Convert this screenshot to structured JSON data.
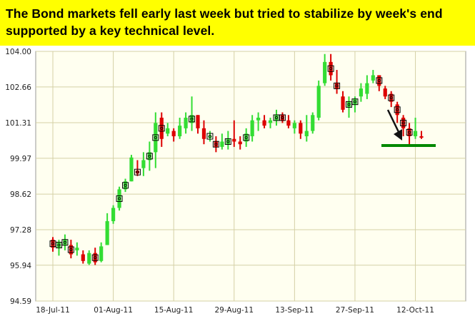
{
  "headline": "The Bond markets fell early last week but tried to stabilize by week's end supported by a key technical level.",
  "colors": {
    "headline_bg": "#ffff00",
    "plot_bg": "#fffff0",
    "grid": "#d4d0a6",
    "frame": "#999999",
    "up": "#33dd33",
    "down": "#dd0000",
    "support_line": "#008800",
    "arrow": "#111111"
  },
  "chart_data": {
    "type": "candlestick",
    "title": "",
    "xlabel": "",
    "ylabel": "",
    "ylim": [
      94.59,
      104.0
    ],
    "y_ticks": [
      "104.00",
      "102.66",
      "101.31",
      "99.97",
      "98.62",
      "97.28",
      "95.94",
      "94.59"
    ],
    "x_ticks": [
      "18-Jul-11",
      "01-Aug-11",
      "15-Aug-11",
      "29-Aug-11",
      "13-Sep-11",
      "27-Sep-11",
      "12-Oct-11"
    ],
    "grid": true,
    "support_level": 100.45,
    "annotation": "arrow pointing down to support line",
    "candles": [
      {
        "date": "18-Jul",
        "open": 96.9,
        "high": 97.0,
        "low": 96.45,
        "close": 96.6,
        "marker": true
      },
      {
        "date": "19-Jul",
        "open": 96.6,
        "high": 96.9,
        "low": 96.3,
        "close": 96.8,
        "marker": true
      },
      {
        "date": "20-Jul",
        "open": 96.7,
        "high": 97.1,
        "low": 96.5,
        "close": 96.9,
        "marker": true
      },
      {
        "date": "21-Jul",
        "open": 96.7,
        "high": 96.9,
        "low": 96.2,
        "close": 96.35,
        "marker": true
      },
      {
        "date": "22-Jul",
        "open": 96.5,
        "high": 96.8,
        "low": 96.3,
        "close": 96.6,
        "marker": false
      },
      {
        "date": "25-Jul",
        "open": 96.35,
        "high": 96.5,
        "low": 96.0,
        "close": 96.1,
        "marker": false
      },
      {
        "date": "26-Jul",
        "open": 96.0,
        "high": 96.5,
        "low": 95.95,
        "close": 96.4,
        "marker": false
      },
      {
        "date": "27-Jul",
        "open": 96.4,
        "high": 96.6,
        "low": 95.95,
        "close": 96.05,
        "marker": true
      },
      {
        "date": "28-Jul",
        "open": 96.1,
        "high": 96.8,
        "low": 96.05,
        "close": 96.65,
        "marker": false
      },
      {
        "date": "29-Jul",
        "open": 96.7,
        "high": 97.9,
        "low": 96.7,
        "close": 97.6,
        "marker": false
      },
      {
        "date": "01-Aug",
        "open": 97.6,
        "high": 98.2,
        "low": 97.5,
        "close": 98.1,
        "marker": false
      },
      {
        "date": "02-Aug",
        "open": 98.1,
        "high": 98.9,
        "low": 98.0,
        "close": 98.8,
        "marker": true
      },
      {
        "date": "03-Aug",
        "open": 98.8,
        "high": 99.2,
        "low": 98.7,
        "close": 99.1,
        "marker": true
      },
      {
        "date": "04-Aug",
        "open": 99.1,
        "high": 100.1,
        "low": 99.1,
        "close": 100.0,
        "marker": false
      },
      {
        "date": "05-Aug",
        "open": 99.5,
        "high": 99.9,
        "low": 99.3,
        "close": 99.4,
        "marker": true
      },
      {
        "date": "08-Aug",
        "open": 99.6,
        "high": 100.2,
        "low": 99.3,
        "close": 99.9,
        "marker": false
      },
      {
        "date": "09-Aug",
        "open": 99.9,
        "high": 100.6,
        "low": 99.5,
        "close": 100.2,
        "marker": true
      },
      {
        "date": "10-Aug",
        "open": 100.2,
        "high": 101.7,
        "low": 99.6,
        "close": 101.3,
        "marker": true
      },
      {
        "date": "11-Aug",
        "open": 101.5,
        "high": 101.7,
        "low": 100.4,
        "close": 100.7,
        "marker": true
      },
      {
        "date": "12-Aug",
        "open": 100.9,
        "high": 101.3,
        "low": 100.8,
        "close": 101.1,
        "marker": false
      },
      {
        "date": "15-Aug",
        "open": 101.0,
        "high": 101.1,
        "low": 100.6,
        "close": 100.8,
        "marker": false
      },
      {
        "date": "16-Aug",
        "open": 100.8,
        "high": 101.5,
        "low": 100.7,
        "close": 101.2,
        "marker": false
      },
      {
        "date": "17-Aug",
        "open": 101.1,
        "high": 101.7,
        "low": 100.9,
        "close": 101.5,
        "marker": false
      },
      {
        "date": "18-Aug",
        "open": 101.3,
        "high": 102.3,
        "low": 101.0,
        "close": 101.6,
        "marker": true
      },
      {
        "date": "19-Aug",
        "open": 101.6,
        "high": 101.6,
        "low": 100.9,
        "close": 101.1,
        "marker": false
      },
      {
        "date": "22-Aug",
        "open": 101.1,
        "high": 101.4,
        "low": 100.5,
        "close": 100.7,
        "marker": false
      },
      {
        "date": "23-Aug",
        "open": 100.8,
        "high": 101.0,
        "low": 100.6,
        "close": 100.8,
        "marker": true
      },
      {
        "date": "24-Aug",
        "open": 100.6,
        "high": 100.8,
        "low": 100.2,
        "close": 100.4,
        "marker": true
      },
      {
        "date": "25-Aug",
        "open": 100.4,
        "high": 100.9,
        "low": 100.3,
        "close": 100.6,
        "marker": false
      },
      {
        "date": "26-Aug",
        "open": 100.5,
        "high": 101.0,
        "low": 100.3,
        "close": 100.7,
        "marker": true
      },
      {
        "date": "29-Aug",
        "open": 100.7,
        "high": 101.4,
        "low": 100.4,
        "close": 100.6,
        "marker": false
      },
      {
        "date": "30-Aug",
        "open": 100.6,
        "high": 100.8,
        "low": 100.3,
        "close": 100.5,
        "marker": false
      },
      {
        "date": "31-Aug",
        "open": 100.6,
        "high": 101.1,
        "low": 100.4,
        "close": 100.9,
        "marker": true
      },
      {
        "date": "01-Sep",
        "open": 100.8,
        "high": 101.6,
        "low": 100.6,
        "close": 101.4,
        "marker": false
      },
      {
        "date": "02-Sep",
        "open": 101.4,
        "high": 101.7,
        "low": 101.0,
        "close": 101.5,
        "marker": false
      },
      {
        "date": "06-Sep",
        "open": 101.4,
        "high": 101.6,
        "low": 101.1,
        "close": 101.2,
        "marker": false
      },
      {
        "date": "07-Sep",
        "open": 101.3,
        "high": 101.5,
        "low": 101.1,
        "close": 101.4,
        "marker": false
      },
      {
        "date": "08-Sep",
        "open": 101.4,
        "high": 101.8,
        "low": 101.2,
        "close": 101.6,
        "marker": true
      },
      {
        "date": "09-Sep",
        "open": 101.6,
        "high": 101.7,
        "low": 101.3,
        "close": 101.4,
        "marker": true
      },
      {
        "date": "12-Sep",
        "open": 101.4,
        "high": 101.6,
        "low": 101.1,
        "close": 101.2,
        "marker": false
      },
      {
        "date": "13-Sep",
        "open": 101.1,
        "high": 101.4,
        "low": 100.9,
        "close": 101.3,
        "marker": false
      },
      {
        "date": "14-Sep",
        "open": 101.3,
        "high": 101.4,
        "low": 100.7,
        "close": 100.9,
        "marker": false
      },
      {
        "date": "15-Sep",
        "open": 100.8,
        "high": 101.6,
        "low": 100.6,
        "close": 101.0,
        "marker": false
      },
      {
        "date": "16-Sep",
        "open": 101.0,
        "high": 101.7,
        "low": 100.9,
        "close": 101.6,
        "marker": false
      },
      {
        "date": "19-Sep",
        "open": 101.5,
        "high": 102.9,
        "low": 101.4,
        "close": 102.7,
        "marker": false
      },
      {
        "date": "20-Sep",
        "open": 102.8,
        "high": 103.9,
        "low": 102.7,
        "close": 103.6,
        "marker": false
      },
      {
        "date": "21-Sep",
        "open": 103.6,
        "high": 103.9,
        "low": 102.9,
        "close": 103.1,
        "marker": true
      },
      {
        "date": "22-Sep",
        "open": 102.8,
        "high": 103.3,
        "low": 102.4,
        "close": 102.6,
        "marker": true
      },
      {
        "date": "23-Sep",
        "open": 102.3,
        "high": 102.5,
        "low": 101.7,
        "close": 101.8,
        "marker": false
      },
      {
        "date": "26-Sep",
        "open": 101.9,
        "high": 102.3,
        "low": 101.5,
        "close": 102.1,
        "marker": true
      },
      {
        "date": "27-Sep",
        "open": 102.0,
        "high": 102.3,
        "low": 101.7,
        "close": 102.2,
        "marker": true
      },
      {
        "date": "28-Sep",
        "open": 102.3,
        "high": 102.8,
        "low": 102.1,
        "close": 102.6,
        "marker": false
      },
      {
        "date": "29-Sep",
        "open": 102.4,
        "high": 103.1,
        "low": 102.2,
        "close": 102.8,
        "marker": false
      },
      {
        "date": "30-Sep",
        "open": 102.9,
        "high": 103.3,
        "low": 102.8,
        "close": 103.1,
        "marker": false
      },
      {
        "date": "03-Oct",
        "open": 103.1,
        "high": 103.1,
        "low": 102.5,
        "close": 102.7,
        "marker": true
      },
      {
        "date": "04-Oct",
        "open": 102.6,
        "high": 102.7,
        "low": 102.2,
        "close": 102.3,
        "marker": false
      },
      {
        "date": "05-Oct",
        "open": 102.4,
        "high": 102.5,
        "low": 101.9,
        "close": 102.1,
        "marker": true
      },
      {
        "date": "06-Oct",
        "open": 102.0,
        "high": 102.1,
        "low": 101.3,
        "close": 101.6,
        "marker": true
      },
      {
        "date": "07-Oct",
        "open": 101.5,
        "high": 101.6,
        "low": 100.8,
        "close": 101.1,
        "marker": true
      },
      {
        "date": "11-Oct",
        "open": 101.1,
        "high": 101.3,
        "low": 100.5,
        "close": 100.8,
        "marker": true
      },
      {
        "date": "12-Oct",
        "open": 100.8,
        "high": 101.5,
        "low": 100.7,
        "close": 101.0,
        "marker": false
      },
      {
        "date": "13-Oct",
        "open": 100.8,
        "high": 101.0,
        "low": 100.7,
        "close": 100.75,
        "marker": false
      }
    ]
  }
}
